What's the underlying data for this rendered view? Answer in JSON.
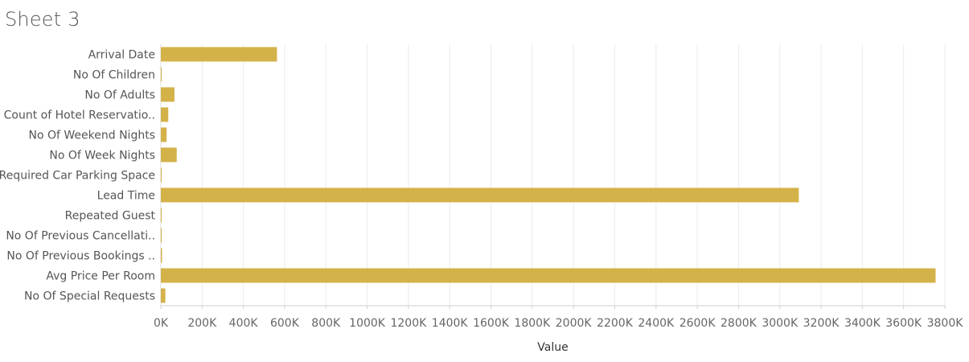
{
  "sheet": {
    "title": "Sheet 3"
  },
  "chart_data": {
    "type": "bar",
    "orientation": "horizontal",
    "title": "Sheet 3",
    "xlabel": "Value",
    "ylabel": "",
    "categories": [
      "Arrival Date",
      "No Of Children",
      "No Of Adults",
      "Count of Hotel Reservatio..",
      "No Of Weekend Nights",
      "No Of Week Nights",
      "Required Car Parking Space",
      "Lead Time",
      "Repeated Guest",
      "No Of Previous Cancellati..",
      "No Of Previous Bookings ..",
      "Avg Price Per Room",
      "No Of Special Requests"
    ],
    "values": [
      563000,
      3800,
      66000,
      36000,
      28000,
      77000,
      1000,
      3092000,
      900,
      1000,
      5800,
      3755000,
      22000
    ],
    "xlim": [
      0,
      3800000
    ],
    "x_ticks": [
      0,
      200000,
      400000,
      600000,
      800000,
      1000000,
      1200000,
      1400000,
      1600000,
      1800000,
      2000000,
      2200000,
      2400000,
      2600000,
      2800000,
      3000000,
      3200000,
      3400000,
      3600000,
      3800000
    ],
    "x_tick_labels": [
      "0K",
      "200K",
      "400K",
      "600K",
      "800K",
      "1000K",
      "1200K",
      "1400K",
      "1600K",
      "1800K",
      "2000K",
      "2200K",
      "2400K",
      "2600K",
      "2800K",
      "3000K",
      "3200K",
      "3400K",
      "3600K",
      "3800K"
    ],
    "grid": "vertical",
    "colors": {
      "bar": "#D4B24A",
      "grid": "#EBEBEB",
      "axis": "#CFCFCF"
    }
  }
}
